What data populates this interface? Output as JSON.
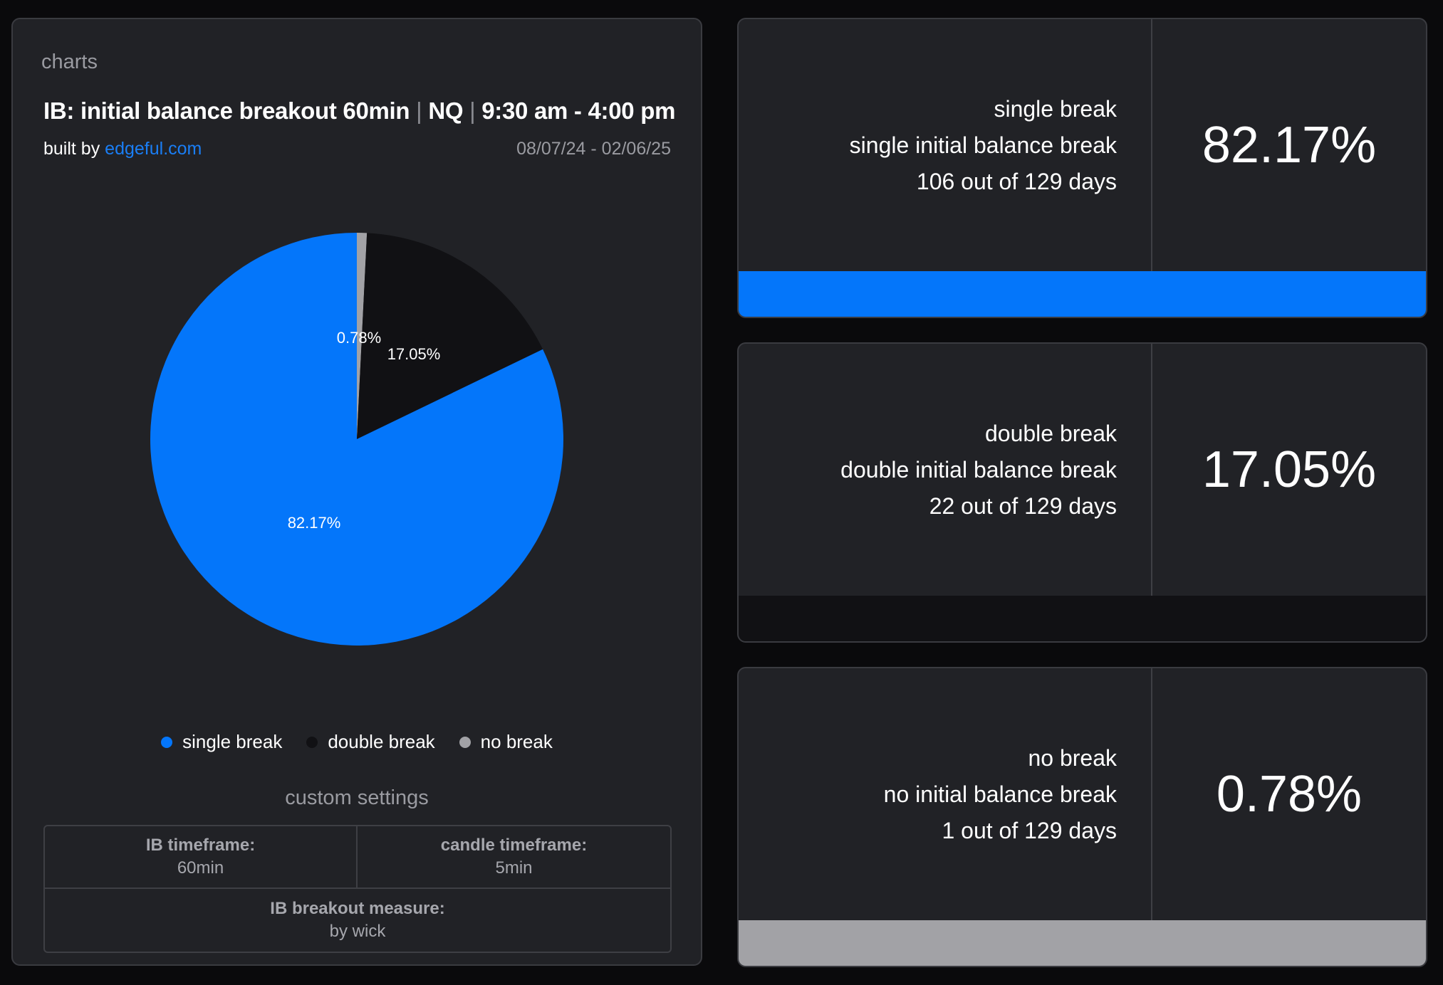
{
  "panel": {
    "label": "charts",
    "title_main": "IB: initial balance breakout 60min",
    "title_sep": "|",
    "title_symbol": "NQ",
    "title_hours": "9:30 am - 4:00 pm",
    "built_by_prefix": "built by",
    "built_by_link": "edgeful.com",
    "date_range": "08/07/24 - 02/06/25"
  },
  "chart_data": {
    "type": "pie",
    "slices": [
      {
        "name": "single break",
        "value": 82.17,
        "label": "82.17%",
        "color": "#0476fa"
      },
      {
        "name": "double break",
        "value": 17.05,
        "label": "17.05%",
        "color": "#111114"
      },
      {
        "name": "no break",
        "value": 0.78,
        "label": "0.78%",
        "color": "#a2a2a6"
      }
    ],
    "legend": [
      "single break",
      "double break",
      "no break"
    ],
    "legend_position": "bottom"
  },
  "settings": {
    "title": "custom settings",
    "ib_timeframe_label": "IB timeframe:",
    "ib_timeframe_value": "60min",
    "candle_timeframe_label": "candle timeframe:",
    "candle_timeframe_value": "5min",
    "breakout_measure_label": "IB breakout measure:",
    "breakout_measure_value": "by wick"
  },
  "cards": [
    {
      "title": "single break",
      "subtitle": "single initial balance break",
      "count": "106 out of 129 days",
      "percent": "82.17%",
      "bar_color": "#0476fa"
    },
    {
      "title": "double break",
      "subtitle": "double initial balance break",
      "count": "22 out of 129 days",
      "percent": "17.05%",
      "bar_color": "#111114"
    },
    {
      "title": "no break",
      "subtitle": "no initial balance break",
      "count": "1 out of 129 days",
      "percent": "0.78%",
      "bar_color": "#a2a2a6"
    }
  ]
}
